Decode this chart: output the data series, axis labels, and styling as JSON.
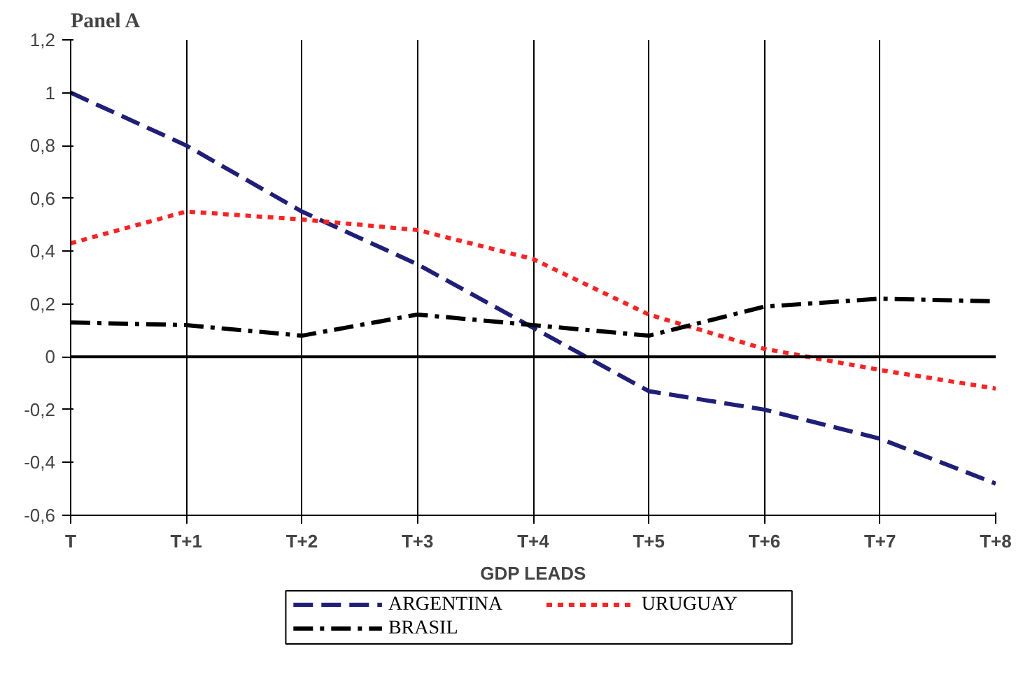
{
  "chart_data": {
    "type": "line",
    "title": "Panel A",
    "xlabel": "GDP LEADS",
    "categories": [
      "T",
      "T+1",
      "T+2",
      "T+3",
      "T+4",
      "T+5",
      "T+6",
      "T+7",
      "T+8"
    ],
    "series": [
      {
        "name": "ARGENTINA",
        "color": "#1f1f7a",
        "line_style": "dashed",
        "values": [
          1.0,
          0.8,
          0.55,
          0.35,
          0.11,
          -0.13,
          -0.2,
          -0.31,
          -0.48
        ]
      },
      {
        "name": "URUGUAY",
        "color": "#ff2020",
        "line_style": "dotted",
        "values": [
          0.43,
          0.55,
          0.52,
          0.48,
          0.37,
          0.16,
          0.03,
          -0.05,
          -0.12
        ]
      },
      {
        "name": "BRASIL",
        "color": "#000000",
        "line_style": "dashdot",
        "values": [
          0.13,
          0.12,
          0.08,
          0.16,
          0.12,
          0.08,
          0.19,
          0.22,
          0.21
        ]
      }
    ],
    "ylim": [
      -0.6,
      1.2
    ],
    "yticks": [
      {
        "value": -0.6,
        "label": "-0,6"
      },
      {
        "value": -0.4,
        "label": "-0,4"
      },
      {
        "value": -0.2,
        "label": "-0,2"
      },
      0,
      {
        "value": 0.2,
        "label": "0,2"
      },
      {
        "value": 0.4,
        "label": "0,4"
      },
      {
        "value": 0.6,
        "label": "0,6"
      },
      {
        "value": 0.8,
        "label": "0,8"
      },
      1,
      {
        "value": 1.2,
        "label": "1,2"
      }
    ],
    "grid": "x",
    "legend": "bottom",
    "ref_lines": [
      {
        "axis": "y",
        "value": 0,
        "color": "#000000"
      }
    ]
  }
}
